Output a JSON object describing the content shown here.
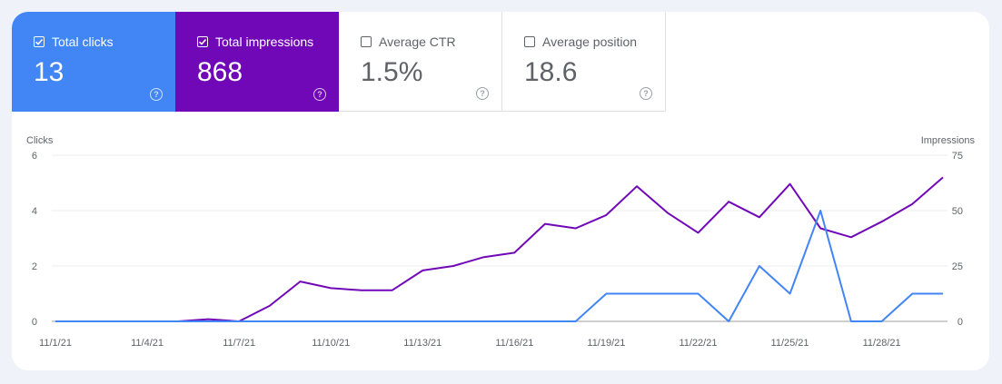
{
  "metrics": [
    {
      "label": "Total clicks",
      "value": "13",
      "checked": true,
      "color": "#4285f4"
    },
    {
      "label": "Total impressions",
      "value": "868",
      "checked": true,
      "color": "#7108b8"
    },
    {
      "label": "Average CTR",
      "value": "1.5%",
      "checked": false,
      "color": ""
    },
    {
      "label": "Average position",
      "value": "18.6",
      "checked": false,
      "color": ""
    }
  ],
  "help_glyph": "?",
  "chart_data": {
    "type": "line",
    "x": [
      "11/1/21",
      "11/2/21",
      "11/3/21",
      "11/4/21",
      "11/5/21",
      "11/6/21",
      "11/7/21",
      "11/8/21",
      "11/9/21",
      "11/10/21",
      "11/11/21",
      "11/12/21",
      "11/13/21",
      "11/14/21",
      "11/15/21",
      "11/16/21",
      "11/17/21",
      "11/18/21",
      "11/19/21",
      "11/20/21",
      "11/21/21",
      "11/22/21",
      "11/23/21",
      "11/24/21",
      "11/25/21",
      "11/26/21",
      "11/27/21",
      "11/28/21",
      "11/29/21",
      "11/30/21"
    ],
    "x_tick_labels": [
      "11/1/21",
      "11/4/21",
      "11/7/21",
      "11/10/21",
      "11/13/21",
      "11/16/21",
      "11/19/21",
      "11/22/21",
      "11/25/21",
      "11/28/21"
    ],
    "series": [
      {
        "name": "Clicks",
        "axis": "left",
        "color": "#4285f4",
        "values": [
          0,
          0,
          0,
          0,
          0,
          0,
          0,
          0,
          0,
          0,
          0,
          0,
          0,
          0,
          0,
          0,
          0,
          0,
          1,
          1,
          1,
          1,
          0,
          2,
          1,
          4,
          0,
          0,
          1,
          1
        ]
      },
      {
        "name": "Impressions",
        "axis": "right",
        "color": "#7108b8",
        "values": [
          0,
          0,
          0,
          0,
          0,
          1,
          0,
          7,
          18,
          15,
          14,
          14,
          23,
          25,
          29,
          31,
          44,
          42,
          48,
          61,
          49,
          40,
          54,
          47,
          62,
          42,
          38,
          45,
          53,
          65
        ]
      }
    ],
    "y_left": {
      "label": "Clicks",
      "ticks": [
        "0",
        "2",
        "4",
        "6"
      ],
      "range": [
        0,
        6
      ]
    },
    "y_right": {
      "label": "Impressions",
      "ticks": [
        "0",
        "25",
        "50",
        "75"
      ],
      "range": [
        0,
        75
      ]
    },
    "grid": true
  }
}
